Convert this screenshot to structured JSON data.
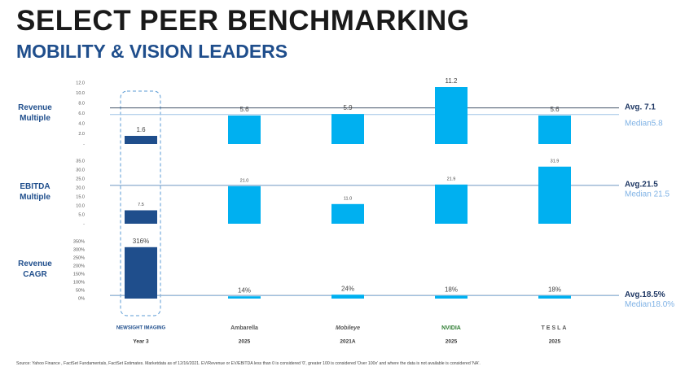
{
  "header": {
    "title": "SELECT PEER BENCHMARKING",
    "subtitle": "MOBILITY & VISION LEADERS"
  },
  "companies": [
    {
      "name": "NEWSIGHT IMAGING",
      "year": "Year 3"
    },
    {
      "name": "Ambarella",
      "year": "2025"
    },
    {
      "name": "Mobileye",
      "year": "2021A"
    },
    {
      "name": "NVIDIA",
      "year": "2025"
    },
    {
      "name": "TESLA",
      "year": "2025"
    }
  ],
  "chart_data": [
    {
      "type": "bar",
      "y_label": "Revenue Multiple",
      "values": [
        1.6,
        5.6,
        5.9,
        11.2,
        5.6
      ],
      "colors": [
        "#1f4e8c",
        "#00b0f0",
        "#00b0f0",
        "#00b0f0",
        "#00b0f0"
      ],
      "ylim": [
        0,
        12
      ],
      "yticks": [
        {
          "value": 0,
          "label": "-"
        },
        {
          "value": 2,
          "label": "2.0"
        },
        {
          "value": 4,
          "label": "4.0"
        },
        {
          "value": 6,
          "label": "6.0"
        },
        {
          "value": 8,
          "label": "8.0"
        },
        {
          "value": 10,
          "label": "10.0"
        },
        {
          "value": 12,
          "label": "12.0"
        }
      ],
      "avg": {
        "value": 7.1,
        "label": "Avg.  7.1",
        "color": "#44546a"
      },
      "median": {
        "value": 5.8,
        "label": "Median5.8",
        "color": "#9dc3e6"
      }
    },
    {
      "type": "bar",
      "y_label": "EBITDA Multiple",
      "values": [
        7.5,
        21.0,
        11.0,
        21.9,
        31.9
      ],
      "value_labels": [
        "7.5",
        "21.0",
        "11.0",
        "21.9",
        "31.9"
      ],
      "colors": [
        "#1f4e8c",
        "#00b0f0",
        "#00b0f0",
        "#00b0f0",
        "#00b0f0"
      ],
      "ylim": [
        0,
        35
      ],
      "yticks": [
        {
          "value": 0,
          "label": "-"
        },
        {
          "value": 5,
          "label": "5.0"
        },
        {
          "value": 10,
          "label": "10.0"
        },
        {
          "value": 15,
          "label": "15.0"
        },
        {
          "value": 20,
          "label": "20.0"
        },
        {
          "value": 25,
          "label": "25.0"
        },
        {
          "value": 30,
          "label": "30.0"
        },
        {
          "value": 35,
          "label": "35.0"
        }
      ],
      "avg": {
        "value": 21.5,
        "label": "Avg.21.5",
        "color": "#44546a"
      },
      "median": {
        "value": 21.5,
        "label": "Median 21.5",
        "color": "#9dc3e6"
      }
    },
    {
      "type": "bar",
      "y_label": "Revenue CAGR",
      "values": [
        316,
        14,
        24,
        18,
        18
      ],
      "value_labels": [
        "316%",
        "14%",
        "24%",
        "18%",
        "18%"
      ],
      "colors": [
        "#1f4e8c",
        "#00b0f0",
        "#00b0f0",
        "#00b0f0",
        "#00b0f0"
      ],
      "ylim": [
        0,
        350
      ],
      "yticks": [
        {
          "value": 0,
          "label": "0%"
        },
        {
          "value": 50,
          "label": "50%"
        },
        {
          "value": 100,
          "label": "100%"
        },
        {
          "value": 150,
          "label": "150%"
        },
        {
          "value": 200,
          "label": "200%"
        },
        {
          "value": 250,
          "label": "250%"
        },
        {
          "value": 300,
          "label": "300%"
        },
        {
          "value": 350,
          "label": "350%"
        }
      ],
      "avg": {
        "value": 18.5,
        "label": "Avg.18.5%",
        "color": "#44546a"
      },
      "median": {
        "value": 18.0,
        "label": "Median18.0%",
        "color": "#9dc3e6"
      }
    }
  ],
  "footnote": "Source: Yahoo Finance , FactSet Fundamentals, FactSet Estimates. Marketdata as of 12/16/2021. EV/Revenue or EV/EBITDA less than 0 is considered '0', greater 100 is considered 'Over 100x' and where the data is not available is considered 'NA'."
}
